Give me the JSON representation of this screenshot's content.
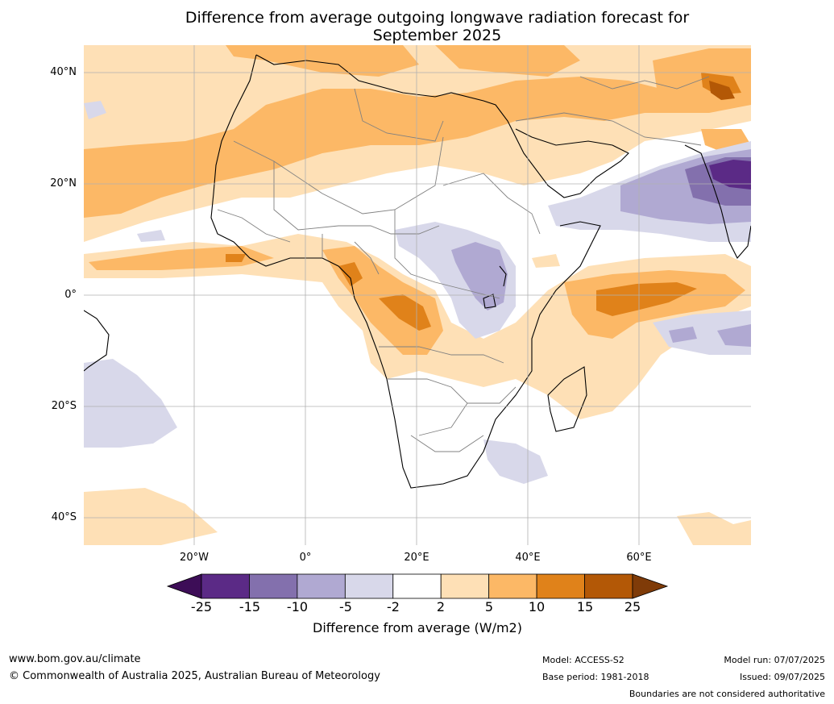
{
  "title_line1": "Difference from average outgoing longwave radiation forecast for",
  "title_line2": "September 2025",
  "map": {
    "lat_labels": [
      "40°N",
      "20°N",
      "0°",
      "20°S",
      "40°S"
    ],
    "lon_labels": [
      "20°W",
      "0°",
      "20°E",
      "40°E",
      "60°E"
    ],
    "grid": true,
    "extent": {
      "lon": [
        -40,
        80
      ],
      "lat": [
        -45,
        45
      ]
    }
  },
  "legend": {
    "ticks": [
      "-25",
      "-15",
      "-10",
      "-5",
      "-2",
      "2",
      "5",
      "10",
      "15",
      "25"
    ],
    "label": "Difference from average (W/m2)",
    "colors": [
      "#3d0d57",
      "#5b2a86",
      "#8370ad",
      "#b0a9d2",
      "#d8d8ea",
      "#ffffff",
      "#fee0b6",
      "#fcb866",
      "#e0821a",
      "#b35806",
      "#7f3b08"
    ]
  },
  "footer": {
    "website": "www.bom.gov.au/climate",
    "copyright": "© Commonwealth of Australia 2025, Australian Bureau of Meteorology",
    "model": "Model: ACCESS-S2",
    "base_period": "Base period: 1981-2018",
    "model_run": "Model run: 07/07/2025",
    "issued": "Issued: 09/07/2025",
    "disclaimer": "Boundaries are not considered authoritative"
  }
}
